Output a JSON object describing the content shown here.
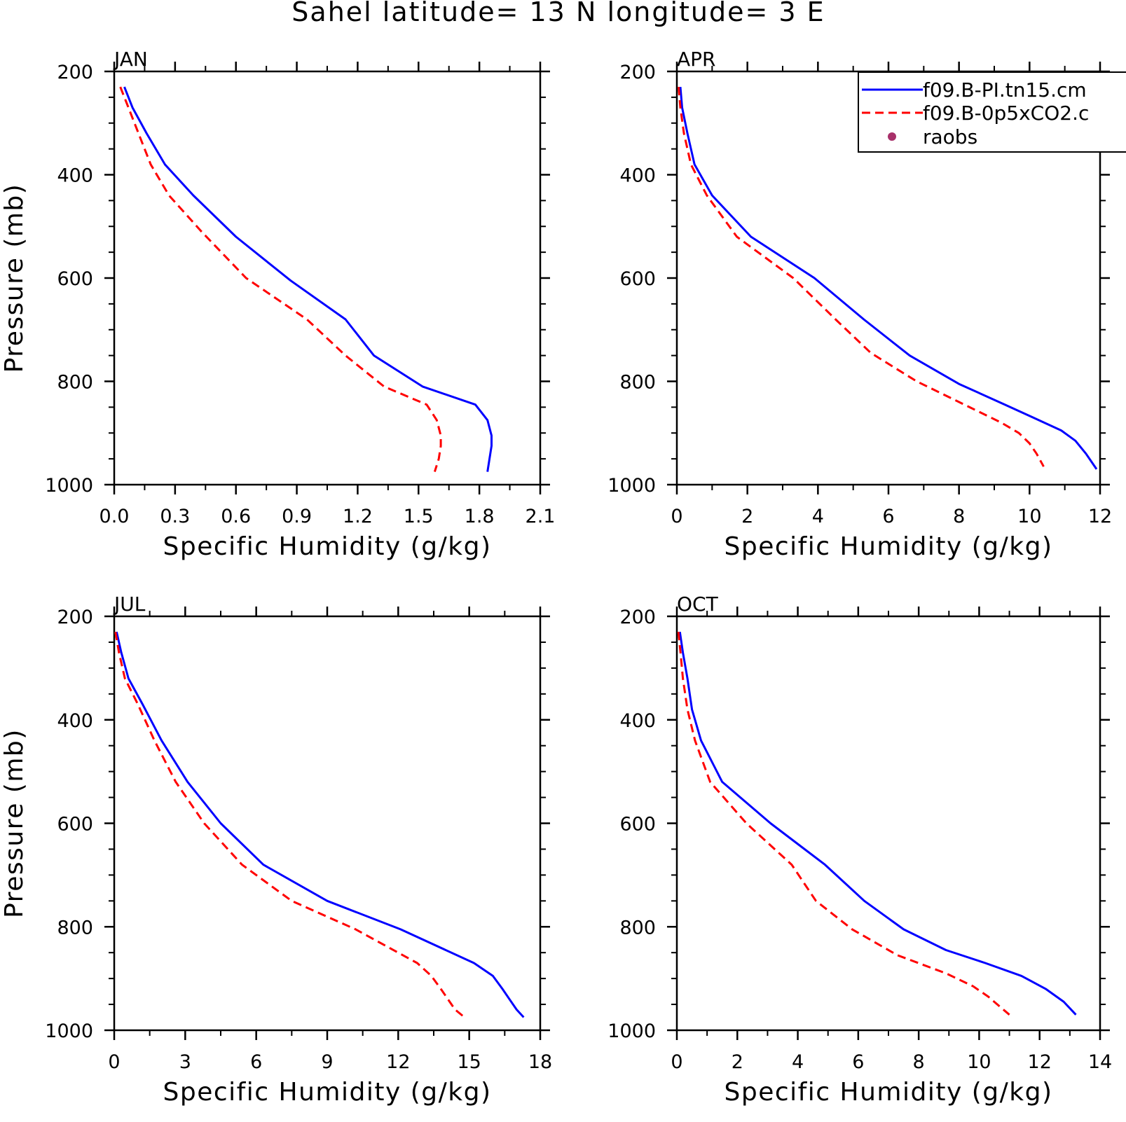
{
  "title": "Sahel  latitude= 13 N longitude= 3 E",
  "colors": {
    "series1": "#0000ff",
    "series2": "#ff0000",
    "raobs": "#a8306a"
  },
  "legend": {
    "entries": [
      {
        "label": "f09.B-PI.tn15.cm",
        "color": "#0000ff",
        "style": "solid"
      },
      {
        "label": "f09.B-0p5xCO2.c",
        "color": "#ff0000",
        "style": "dashed"
      },
      {
        "label": "raobs",
        "color": "#a8306a",
        "style": "dot"
      }
    ],
    "placement": "top-right"
  },
  "chart_data": [
    {
      "type": "line",
      "panel": "JAN",
      "xlabel": "Specific Humidity (g/kg)",
      "ylabel": "Pressure (mb)",
      "xlim": [
        0,
        2.1
      ],
      "xticks": [
        "0.0",
        "0.3",
        "0.6",
        "0.9",
        "1.2",
        "1.5",
        "1.8",
        "2.1"
      ],
      "ylim": [
        200,
        1000
      ],
      "yticks": [
        "200",
        "400",
        "600",
        "800",
        "1000"
      ],
      "series": [
        {
          "name": "f09.B-PI.tn15.cm",
          "x": [
            0.05,
            0.09,
            0.16,
            0.25,
            0.39,
            0.6,
            0.87,
            1.14,
            1.28,
            1.52,
            1.78,
            1.84,
            1.86,
            1.86,
            1.85,
            1.84
          ],
          "y": [
            230,
            270,
            320,
            380,
            440,
            520,
            605,
            680,
            750,
            810,
            845,
            875,
            905,
            925,
            950,
            975
          ]
        },
        {
          "name": "f09.B-0p5xCO2.c",
          "x": [
            0.03,
            0.07,
            0.12,
            0.18,
            0.27,
            0.43,
            0.65,
            0.95,
            1.14,
            1.33,
            1.54,
            1.59,
            1.61,
            1.61,
            1.6,
            1.58
          ],
          "y": [
            230,
            270,
            320,
            380,
            440,
            510,
            600,
            680,
            750,
            810,
            845,
            875,
            905,
            925,
            950,
            975
          ]
        }
      ]
    },
    {
      "type": "line",
      "panel": "APR",
      "xlabel": "Specific Humidity (g/kg)",
      "ylabel": "",
      "xlim": [
        0,
        12
      ],
      "xticks": [
        "0",
        "2",
        "4",
        "6",
        "8",
        "10",
        "12"
      ],
      "ylim": [
        200,
        1000
      ],
      "yticks": [
        "200",
        "400",
        "600",
        "800",
        "1000"
      ],
      "series": [
        {
          "name": "f09.B-PI.tn15.cm",
          "x": [
            0.1,
            0.15,
            0.3,
            0.5,
            1.0,
            2.1,
            3.9,
            5.3,
            6.6,
            8.0,
            9.3,
            10.1,
            10.9,
            11.3,
            11.6,
            11.9
          ],
          "y": [
            230,
            270,
            320,
            380,
            440,
            520,
            600,
            680,
            750,
            805,
            845,
            870,
            895,
            915,
            940,
            970
          ]
        },
        {
          "name": "f09.B-0p5xCO2.c",
          "x": [
            0.05,
            0.1,
            0.2,
            0.4,
            0.85,
            1.7,
            3.3,
            4.5,
            5.5,
            6.8,
            8.3,
            9.2,
            9.7,
            10.0,
            10.2,
            10.4
          ],
          "y": [
            230,
            270,
            320,
            380,
            440,
            520,
            600,
            680,
            745,
            800,
            850,
            880,
            900,
            920,
            940,
            965
          ]
        }
      ]
    },
    {
      "type": "line",
      "panel": "JUL",
      "xlabel": "Specific Humidity (g/kg)",
      "ylabel": "Pressure (mb)",
      "xlim": [
        0,
        18
      ],
      "xticks": [
        "0",
        "3",
        "6",
        "9",
        "12",
        "15",
        "18"
      ],
      "ylim": [
        200,
        1000
      ],
      "yticks": [
        "200",
        "400",
        "600",
        "800",
        "1000"
      ],
      "series": [
        {
          "name": "f09.B-PI.tn15.cm",
          "x": [
            0.1,
            0.3,
            0.6,
            1.2,
            2.0,
            3.1,
            4.5,
            6.3,
            9.0,
            12.1,
            15.2,
            16.0,
            16.4,
            16.7,
            17.0,
            17.3
          ],
          "y": [
            230,
            270,
            320,
            370,
            440,
            520,
            600,
            680,
            750,
            805,
            870,
            895,
            920,
            940,
            960,
            975
          ]
        },
        {
          "name": "f09.B-0p5xCO2.c",
          "x": [
            0.05,
            0.2,
            0.45,
            1.0,
            1.7,
            2.6,
            3.8,
            5.4,
            7.5,
            10.2,
            12.8,
            13.4,
            13.8,
            14.1,
            14.4,
            14.8
          ],
          "y": [
            230,
            270,
            320,
            370,
            440,
            520,
            600,
            680,
            750,
            805,
            870,
            895,
            920,
            940,
            960,
            975
          ]
        }
      ]
    },
    {
      "type": "line",
      "panel": "OCT",
      "xlabel": "Specific Humidity (g/kg)",
      "ylabel": "",
      "xlim": [
        0,
        14
      ],
      "xticks": [
        "0",
        "2",
        "4",
        "6",
        "8",
        "10",
        "12",
        "14"
      ],
      "ylim": [
        200,
        1000
      ],
      "yticks": [
        "200",
        "400",
        "600",
        "800",
        "1000"
      ],
      "series": [
        {
          "name": "f09.B-PI.tn15.cm",
          "x": [
            0.1,
            0.2,
            0.35,
            0.5,
            0.8,
            1.5,
            3.1,
            4.9,
            6.2,
            7.5,
            8.9,
            10.2,
            11.4,
            12.2,
            12.8,
            13.2
          ],
          "y": [
            230,
            270,
            320,
            380,
            440,
            520,
            600,
            680,
            750,
            805,
            845,
            870,
            895,
            920,
            945,
            970
          ]
        },
        {
          "name": "f09.B-0p5xCO2.c",
          "x": [
            0.05,
            0.12,
            0.2,
            0.35,
            0.6,
            1.1,
            2.3,
            3.8,
            4.6,
            5.8,
            7.3,
            8.9,
            9.8,
            10.3,
            10.7,
            11.0
          ],
          "y": [
            230,
            270,
            320,
            380,
            440,
            520,
            600,
            680,
            750,
            805,
            855,
            890,
            915,
            935,
            955,
            970
          ]
        }
      ]
    }
  ]
}
